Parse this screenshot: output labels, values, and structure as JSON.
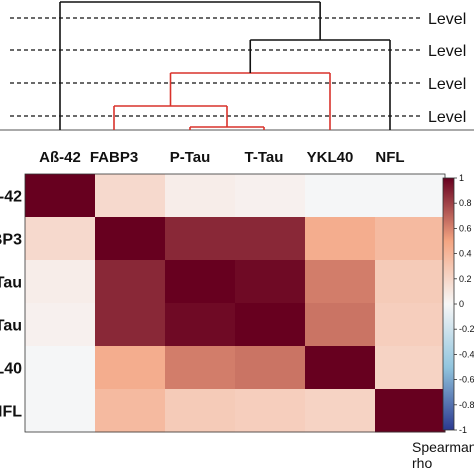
{
  "chart_data": [
    {
      "type": "dendrogram",
      "leaves": [
        "Aß-42",
        "FABP3",
        "P-Tau",
        "T-Tau",
        "YKL40",
        "NFL"
      ],
      "levels": [
        "Level",
        "Level",
        "Level",
        "Level"
      ],
      "clusters": [
        {
          "members": [
            "P-Tau",
            "T-Tau"
          ],
          "color": "#d9322b"
        },
        {
          "members": [
            "FABP3",
            "P-Tau",
            "T-Tau"
          ],
          "color": "#d9322b"
        },
        {
          "members": [
            "FABP3",
            "P-Tau",
            "T-Tau",
            "YKL40"
          ],
          "color": "#d9322b"
        },
        {
          "members": [
            "FABP3",
            "P-Tau",
            "T-Tau",
            "YKL40",
            "NFL"
          ],
          "color": "#111111"
        },
        {
          "members": [
            "Aß-42",
            "FABP3",
            "P-Tau",
            "T-Tau",
            "YKL40",
            "NFL"
          ],
          "color": "#111111"
        }
      ]
    },
    {
      "type": "heatmap",
      "columns": [
        "Aß-42",
        "FABP3",
        "P-Tau",
        "T-Tau",
        "YKL40",
        "NFL"
      ],
      "rows": [
        "-42",
        "BP3",
        "Tau",
        "Tau",
        "L40",
        "NFL"
      ],
      "values": [
        [
          1.0,
          0.18,
          0.06,
          0.04,
          -0.01,
          -0.01
        ],
        [
          0.18,
          1.0,
          0.88,
          0.88,
          0.45,
          0.37
        ],
        [
          0.06,
          0.88,
          1.0,
          0.97,
          0.62,
          0.27
        ],
        [
          0.04,
          0.88,
          0.97,
          1.0,
          0.65,
          0.25
        ],
        [
          -0.01,
          0.45,
          0.62,
          0.65,
          1.0,
          0.22
        ],
        [
          -0.01,
          0.37,
          0.27,
          0.25,
          0.22,
          1.0
        ]
      ],
      "colorbar": {
        "min": -1,
        "max": 1,
        "ticks": [
          "1",
          "0.8",
          "0.6",
          "0.4",
          "0.2",
          "0",
          "-0.2",
          "-0.4",
          "-0.6",
          "-0.8",
          "-1"
        ]
      },
      "colorbar_label": [
        "Spearman",
        "rho"
      ],
      "colors": {
        "negative": "#2b3990",
        "neutral": "#f7f7f7",
        "positive": "#67001f"
      }
    }
  ]
}
